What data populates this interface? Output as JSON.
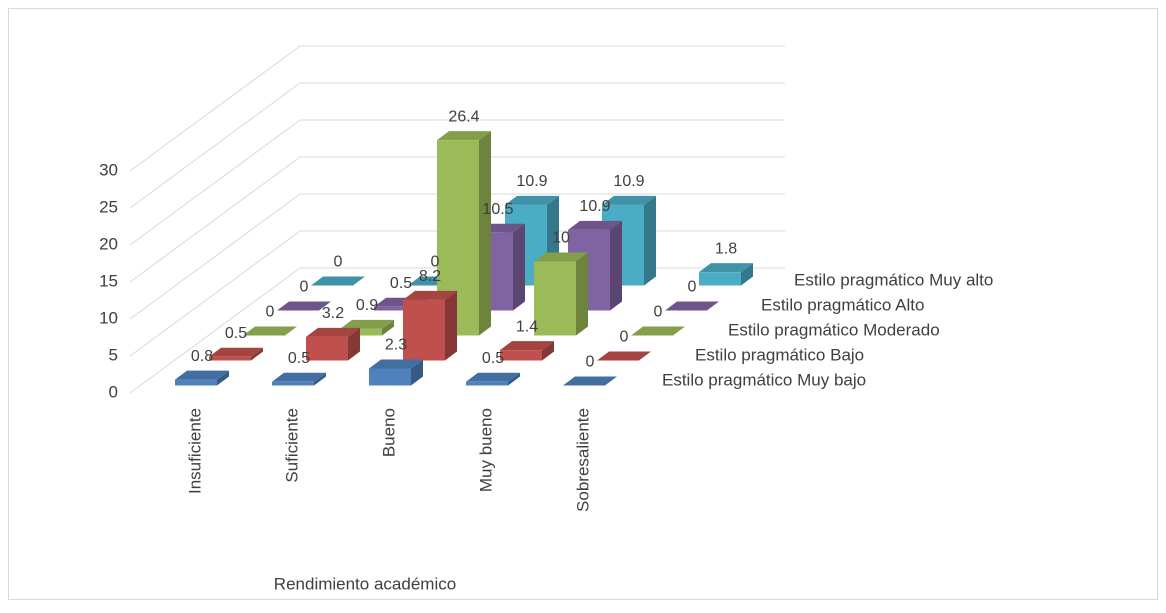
{
  "chart_data": {
    "type": "bar3d",
    "x_label": "Rendimiento académico",
    "categories": [
      "Insuficiente",
      "Suficiente",
      "Bueno",
      "Muy bueno",
      "Sobresaliente"
    ],
    "series": [
      {
        "name": "Estilo pragmático Muy bajo",
        "color": "#4f81bd",
        "values": [
          0.8,
          0.5,
          2.3,
          0.5,
          0
        ]
      },
      {
        "name": "Estilo pragmático Bajo",
        "color": "#c0504d",
        "values": [
          0.5,
          3.2,
          8.2,
          1.4,
          0
        ]
      },
      {
        "name": "Estilo pragmático Moderado",
        "color": "#9bbb59",
        "values": [
          0,
          0.9,
          26.4,
          10,
          0
        ]
      },
      {
        "name": "Estilo pragmático Alto",
        "color": "#8064a2",
        "values": [
          0,
          0.5,
          10.5,
          10.9,
          0
        ]
      },
      {
        "name": "Estilo pragmático Muy alto",
        "color": "#4bacc6",
        "values": [
          0,
          0,
          10.9,
          10.9,
          1.8
        ]
      }
    ],
    "ylim": [
      0,
      30
    ],
    "yticks": [
      0,
      5,
      10,
      15,
      20,
      25,
      30
    ],
    "grid": true
  }
}
